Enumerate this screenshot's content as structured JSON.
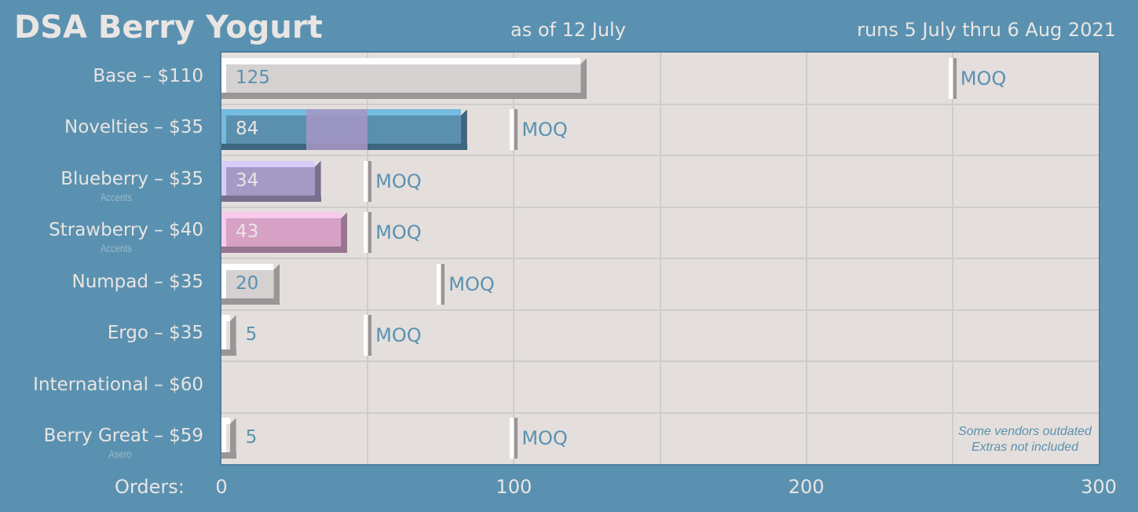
{
  "header": {
    "title": "DSA Berry Yogurt",
    "as_of": "as of 12 July",
    "runs": "runs 5 July thru 6 Aug 2021"
  },
  "note": {
    "line1": "Some vendors outdated",
    "line2": "Extras not included"
  },
  "chart_data": {
    "type": "bar",
    "orientation": "horizontal",
    "xlabel": "Orders:",
    "xlim": [
      0,
      300
    ],
    "xticks": [
      0,
      100,
      200,
      300
    ],
    "grid": true,
    "moq_label": "MOQ",
    "categories": [
      {
        "label": "Base – $110",
        "sublabel": "",
        "value": 125,
        "moq": 250,
        "color": "#d5d1d1",
        "top": "#ffffff",
        "shade": "#9a9596",
        "text": "#5a91b0"
      },
      {
        "label": "Novelties – $35",
        "sublabel": "",
        "value": 84,
        "moq": 100,
        "color": "#5a8fae",
        "top": "#74bbe0",
        "shade": "#3f667e",
        "text": "#e9e5e3",
        "highlight": [
          29,
          50
        ],
        "highlight_color": "#a796c4"
      },
      {
        "label": "Blueberry – $35",
        "sublabel": "Accents",
        "value": 34,
        "moq": 50,
        "color": "#a49ac6",
        "top": "#d8cbf7",
        "shade": "#79708f",
        "text": "#e9e5e3"
      },
      {
        "label": "Strawberry – $40",
        "sublabel": "Accents",
        "value": 43,
        "moq": 50,
        "color": "#d6a1c5",
        "top": "#f7caec",
        "shade": "#977490",
        "text": "#e9e5e3"
      },
      {
        "label": "Numpad – $35",
        "sublabel": "",
        "value": 20,
        "moq": 75,
        "color": "#d5d1d1",
        "top": "#ffffff",
        "shade": "#9a9596",
        "text": "#5a91b0"
      },
      {
        "label": "Ergo – $35",
        "sublabel": "",
        "value": 5,
        "moq": 50,
        "color": "#d5d1d1",
        "top": "#ffffff",
        "shade": "#9a9596",
        "text": "#5a91b0"
      },
      {
        "label": "International – $60",
        "sublabel": "",
        "value": null,
        "moq": null
      },
      {
        "label": "Berry Great – $59",
        "sublabel": "Asero",
        "value": 5,
        "moq": 100,
        "color": "#d5d1d1",
        "top": "#ffffff",
        "shade": "#9a9596",
        "text": "#5a91b0"
      }
    ]
  }
}
